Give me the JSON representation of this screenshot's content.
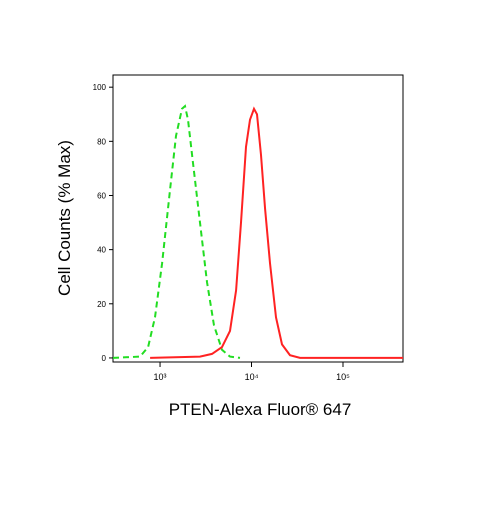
{
  "chart_data": {
    "type": "line",
    "xlabel": "PTEN-Alexa Fluor® 647",
    "ylabel": "Cell Counts (% Max)",
    "xscale": "log",
    "xlim": [
      306,
      453000
    ],
    "ylim": [
      -1.5,
      104.5
    ],
    "xticks": [
      {
        "value": 1000,
        "label": "10³"
      },
      {
        "value": 10000,
        "label": "10⁴"
      },
      {
        "value": 100000,
        "label": "10⁵"
      }
    ],
    "yticks": [
      0,
      20,
      40,
      60,
      80,
      100
    ],
    "series": [
      {
        "color": "#22dd22",
        "dash": true,
        "x": [
          306,
          604,
          740,
          881,
          1052,
          1286,
          1496,
          1739,
          1875,
          2022,
          2294,
          2736,
          3264,
          3891,
          4760,
          5822,
          7482
        ],
        "values": [
          0,
          0.5,
          4,
          15,
          35,
          62,
          82,
          92,
          93,
          88,
          72,
          50,
          28,
          12,
          3,
          0.5,
          0
        ]
      },
      {
        "color": "#ff2222",
        "dash": false,
        "x": [
          778,
          2736,
          3700,
          4760,
          5822,
          6776,
          7674,
          8706,
          9635,
          10650,
          11480,
          12700,
          14060,
          15930,
          18520,
          21550,
          26350,
          33880,
          453000
        ],
        "values": [
          0,
          0.5,
          1.5,
          4,
          10,
          25,
          50,
          78,
          88,
          92,
          90,
          75,
          55,
          35,
          15,
          5,
          1,
          0,
          0
        ]
      }
    ]
  }
}
